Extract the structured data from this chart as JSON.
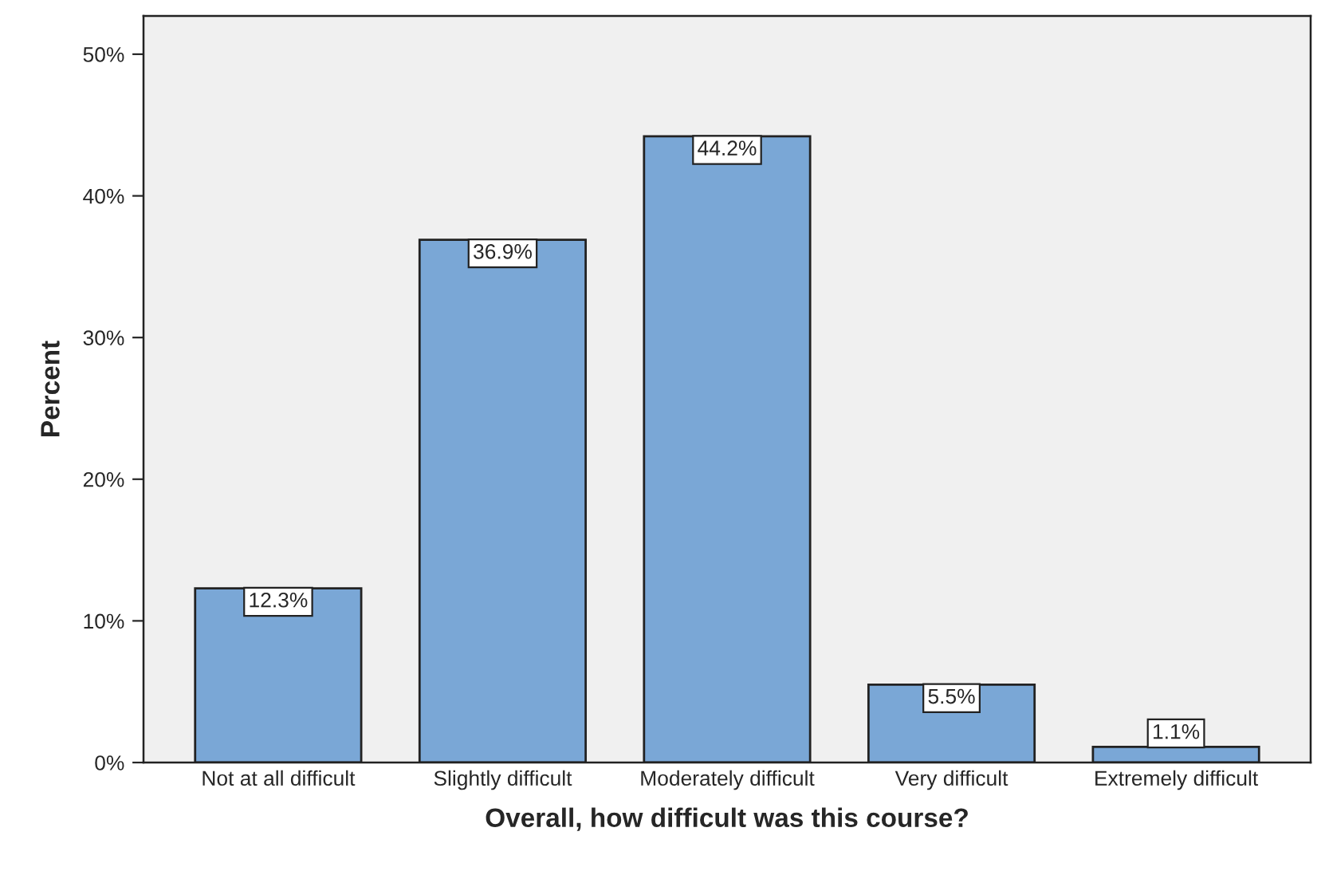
{
  "chart_data": {
    "type": "bar",
    "xlabel": "Overall, how difficult was this course?",
    "ylabel": "Percent",
    "categories": [
      "Not at all difficult",
      "Slightly difficult",
      "Moderately difficult",
      "Very difficult",
      "Extremely difficult"
    ],
    "values": [
      12.3,
      36.9,
      44.2,
      5.5,
      1.1
    ],
    "value_labels": [
      "12.3%",
      "36.9%",
      "44.2%",
      "5.5%",
      "1.1%"
    ],
    "color": "#7aa7d6",
    "ylim": [
      0,
      52.7
    ],
    "yticks": [
      {
        "value": 0,
        "label": "0%"
      },
      {
        "value": 10,
        "label": "10%"
      },
      {
        "value": 20,
        "label": "20%"
      },
      {
        "value": 30,
        "label": "30%"
      },
      {
        "value": 40,
        "label": "40%"
      },
      {
        "value": 50,
        "label": "50%"
      }
    ],
    "grid": false
  }
}
